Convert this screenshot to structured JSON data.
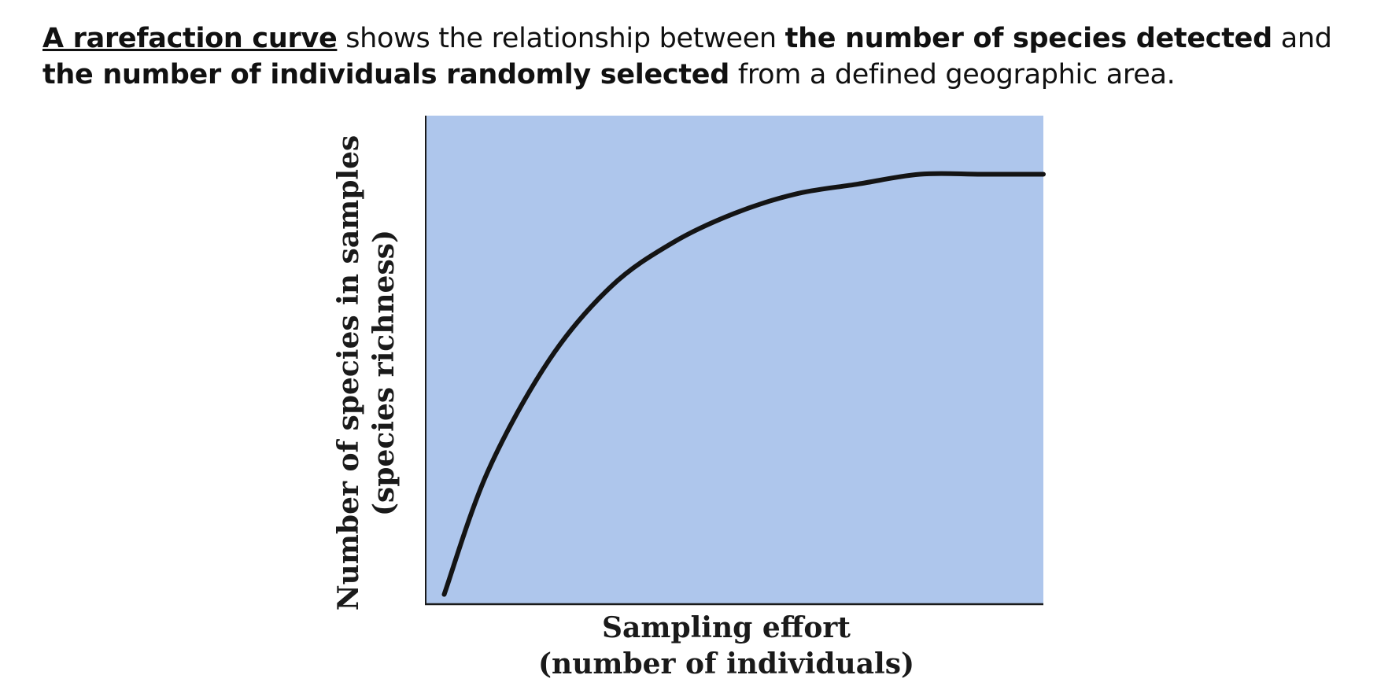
{
  "intro": {
    "term": "A rarefaction curve",
    "t1": " shows the relationship between ",
    "e1": "the number of species detected",
    "t2": " and ",
    "e2": "the number of individuals randomly selected",
    "t3": " from a defined geographic area."
  },
  "chart_data": {
    "type": "line",
    "title": "",
    "xlabel": "Sampling effort",
    "xlabel_sub": "(number of individuals)",
    "ylabel": "Number of species in samples",
    "ylabel_sub": "(species richness)",
    "xlim": [
      0,
      1
    ],
    "ylim": [
      0,
      1
    ],
    "grid": false,
    "ticks": false,
    "x": [
      0.03,
      0.1,
      0.2,
      0.3,
      0.4,
      0.5,
      0.6,
      0.7,
      0.8,
      0.9,
      1.0
    ],
    "series": [
      {
        "values": [
          0.02,
          0.27,
          0.5,
          0.65,
          0.74,
          0.8,
          0.84,
          0.86,
          0.88,
          0.88,
          0.88
        ]
      }
    ],
    "colors": {
      "plot_background": "#aec6ec",
      "curve": "#141414",
      "axis": "#1a1a1a"
    }
  }
}
